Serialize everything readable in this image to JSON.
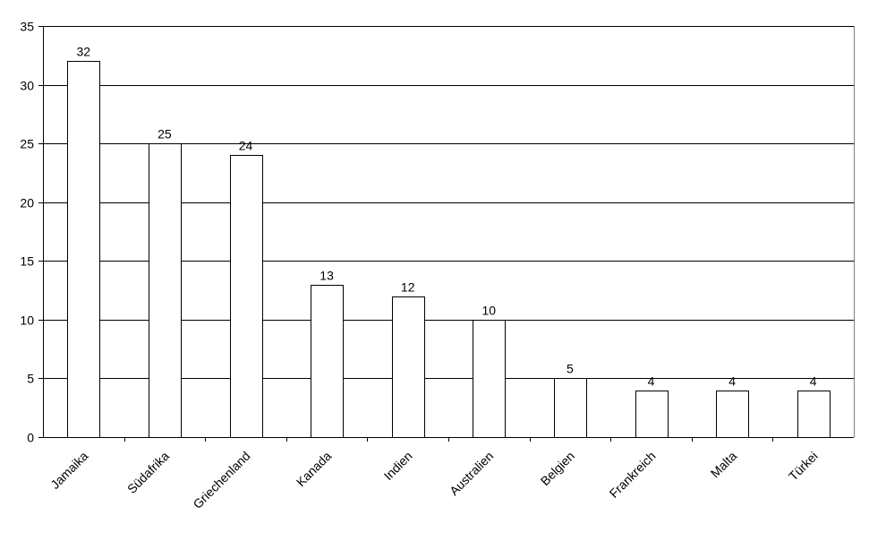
{
  "chart_data": {
    "type": "bar",
    "title": "",
    "xlabel": "",
    "ylabel": "",
    "categories": [
      "Jamaika",
      "Südafrika",
      "Griechenland",
      "Kanada",
      "Indien",
      "Australien",
      "Belgien",
      "Frankreich",
      "Malta",
      "Türkei"
    ],
    "values": [
      32,
      25,
      24,
      13,
      12,
      10,
      5,
      4,
      4,
      4
    ],
    "ylim": [
      0,
      35
    ],
    "yticks": [
      0,
      5,
      10,
      15,
      20,
      25,
      30,
      35
    ],
    "grid": "horizontal",
    "legend": "none",
    "data_labels": true,
    "bar_fill": "#ffffff",
    "bar_stroke": "#000000"
  }
}
